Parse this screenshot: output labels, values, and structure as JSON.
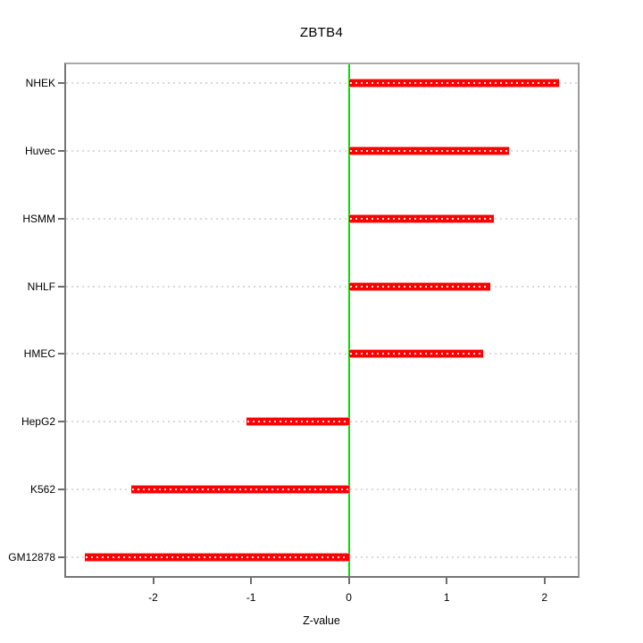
{
  "chart_data": {
    "type": "bar",
    "orientation": "horizontal",
    "title": "ZBTB4",
    "xlabel": "Z-value",
    "ylabel": "",
    "categories": [
      "NHEK",
      "Huvec",
      "HSMM",
      "NHLF",
      "HMEC",
      "HepG2",
      "K562",
      "GM12878"
    ],
    "values": [
      2.15,
      1.64,
      1.48,
      1.45,
      1.37,
      -1.05,
      -2.22,
      -2.7
    ],
    "xlim": [
      -2.89,
      2.34
    ],
    "x_ticks": [
      -2,
      -1,
      0,
      1,
      2
    ],
    "x_tick_labels": [
      "-2",
      "-1",
      "0",
      "1",
      "2"
    ],
    "reference_line_x": 0,
    "grid": "horizontal dotted",
    "legend": "none",
    "colors": {
      "bar": "#ff0000",
      "bar_edge": "#ff9191",
      "bar_dot_overlay": "rgba(255,255,255,0.92)",
      "reference_line": "#00e100",
      "gridline": "#d9d9d9",
      "tick": "#6e6e6e",
      "text": "#000000",
      "background": "#ffffff"
    }
  }
}
